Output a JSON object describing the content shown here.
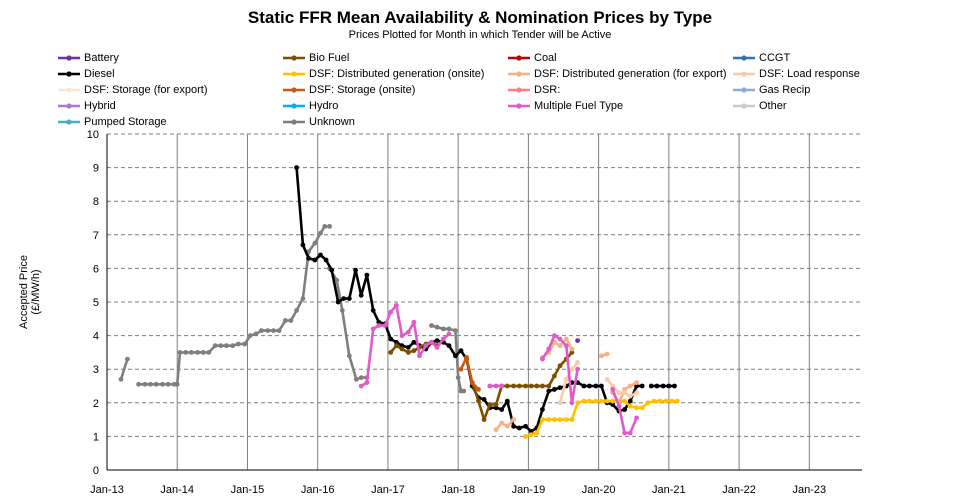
{
  "chart_data": {
    "type": "line",
    "title": "Static FFR Mean Availability & Nomination Prices by Type",
    "subtitle": "Prices Plotted for Month in which Tender will be Active",
    "ylabel": "Accepted Price (£/MW/h)",
    "xlabel": "",
    "ylim": [
      0,
      10
    ],
    "yticks": [
      "0",
      "1",
      "2",
      "3",
      "4",
      "5",
      "6",
      "7",
      "8",
      "9",
      "10"
    ],
    "xticks": [
      "Jan-13",
      "Jan-14",
      "Jan-15",
      "Jan-16",
      "Jan-17",
      "Jan-18",
      "Jan-19",
      "Jan-20",
      "Jan-21",
      "Jan-22",
      "Jan-23"
    ],
    "grid": "dashed horizontal, solid vertical",
    "legend_position": "top",
    "legend": [
      {
        "name": "Battery",
        "color": "#7030A0"
      },
      {
        "name": "Bio Fuel",
        "color": "#7F4F00"
      },
      {
        "name": "Coal",
        "color": "#C00000"
      },
      {
        "name": "CCGT",
        "color": "#2E75B6"
      },
      {
        "name": "Diesel",
        "color": "#000000"
      },
      {
        "name": "DSF: Distributed generation (onsite)",
        "color": "#FFC000"
      },
      {
        "name": "DSF: Distributed generation (for export)",
        "color": "#F4B183"
      },
      {
        "name": "DSF: Load response",
        "color": "#F8CBAD"
      },
      {
        "name": "DSF: Storage (for export)",
        "color": "#FBE5D6"
      },
      {
        "name": "DSF: Storage (onsite)",
        "color": "#C55A11"
      },
      {
        "name": "DSR:",
        "color": "#FF7C80"
      },
      {
        "name": "Gas Recip",
        "color": "#8FAADC"
      },
      {
        "name": "Hybrid",
        "color": "#B074D8"
      },
      {
        "name": "Hydro",
        "color": "#00B0F0"
      },
      {
        "name": "Multiple Fuel Type",
        "color": "#E05AC8"
      },
      {
        "name": "Other",
        "color": "#C9C9C9"
      },
      {
        "name": "Pumped Storage",
        "color": "#4BACC6"
      },
      {
        "name": "Unknown",
        "color": "#7F7F7F"
      }
    ],
    "series": [
      {
        "name": "Unknown",
        "color": "#7F7F7F",
        "x": [
          2013.2,
          2013.29,
          2013.45,
          2013.54,
          2013.62,
          2013.7,
          2013.79,
          2013.87,
          2013.96,
          2014.0,
          2014.04,
          2014.12,
          2014.2,
          2014.29,
          2014.37,
          2014.45,
          2014.54,
          2014.62,
          2014.7,
          2014.79,
          2014.87,
          2014.96,
          2015.04,
          2015.12,
          2015.2,
          2015.29,
          2015.37,
          2015.45,
          2015.54,
          2015.62,
          2015.7,
          2015.79,
          2015.87,
          2015.96,
          2016.04,
          2016.1,
          2016.17
        ],
        "y": [
          2.7,
          3.3,
          2.55,
          2.55,
          2.55,
          2.55,
          2.55,
          2.55,
          2.55,
          2.55,
          3.5,
          3.5,
          3.5,
          3.5,
          3.5,
          3.5,
          3.7,
          3.7,
          3.7,
          3.7,
          3.75,
          3.75,
          4.0,
          4.05,
          4.15,
          4.15,
          4.15,
          4.15,
          4.45,
          4.45,
          4.75,
          5.1,
          6.5,
          6.75,
          7.05,
          7.25,
          7.25
        ],
        "segments": [
          [
            0,
            2
          ],
          [
            2,
            37
          ]
        ]
      },
      {
        "name": "Unknown",
        "color": "#7F7F7F",
        "x": [
          2016.17,
          2016.27,
          2016.35,
          2016.45,
          2016.55,
          2016.62,
          2016.7
        ],
        "y": [
          6.0,
          5.65,
          4.75,
          3.4,
          2.7,
          2.75,
          2.75
        ]
      },
      {
        "name": "Unknown",
        "color": "#7F7F7F",
        "x": [
          2017.62,
          2017.7,
          2017.79,
          2017.87,
          2017.96,
          2018.0,
          2018.04,
          2018.08
        ],
        "y": [
          4.3,
          4.25,
          4.2,
          4.2,
          4.15,
          2.75,
          2.35,
          2.35
        ]
      },
      {
        "name": "Diesel",
        "color": "#000000",
        "x": [
          2015.7,
          2015.79,
          2015.87,
          2015.96,
          2016.04,
          2016.12,
          2016.2,
          2016.29,
          2016.37,
          2016.45,
          2016.54,
          2016.62,
          2016.7,
          2016.79,
          2016.87,
          2016.96,
          2017.04,
          2017.12,
          2017.2,
          2017.29,
          2017.37,
          2017.45,
          2017.54,
          2017.62,
          2017.7,
          2017.79,
          2017.87,
          2017.96,
          2018.04,
          2018.12,
          2018.2,
          2018.29,
          2018.37,
          2018.45,
          2018.54,
          2018.62,
          2018.7,
          2018.79,
          2018.87,
          2018.96,
          2019.04,
          2019.12,
          2019.2,
          2019.29,
          2019.37,
          2019.45,
          2019.54,
          2019.62,
          2019.7,
          2019.79,
          2019.87,
          2019.96,
          2020.04,
          2020.12,
          2020.2,
          2020.29,
          2020.37,
          2020.45,
          2020.54,
          2020.62
        ],
        "y": [
          9.0,
          6.7,
          6.3,
          6.25,
          6.4,
          6.25,
          5.95,
          5.0,
          5.1,
          5.1,
          5.95,
          5.2,
          5.8,
          4.75,
          4.4,
          4.35,
          3.9,
          3.8,
          3.7,
          3.65,
          3.8,
          3.7,
          3.6,
          3.8,
          3.85,
          3.8,
          3.7,
          3.4,
          3.55,
          3.3,
          2.5,
          2.15,
          2.1,
          1.85,
          1.85,
          1.8,
          2.05,
          1.3,
          1.25,
          1.3,
          1.15,
          1.25,
          1.8,
          2.35,
          2.4,
          2.45,
          2.5,
          2.6,
          2.6,
          2.5,
          2.5,
          2.5,
          2.5,
          2.0,
          1.95,
          1.75,
          1.8,
          2.05,
          2.5,
          2.5
        ]
      },
      {
        "name": "Diesel",
        "color": "#000000",
        "x": [
          2020.75,
          2020.83,
          2020.92,
          2021.0,
          2021.08
        ],
        "y": [
          2.5,
          2.5,
          2.5,
          2.5,
          2.5
        ]
      },
      {
        "name": "Bio Fuel",
        "color": "#7F4F00",
        "x": [
          2017.04,
          2017.12,
          2017.2,
          2017.29,
          2017.37,
          2017.45,
          2017.54,
          2017.62,
          2017.7,
          2018.12,
          2018.2,
          2018.29,
          2018.37,
          2018.45,
          2018.54,
          2018.62,
          2018.7,
          2018.79,
          2018.87,
          2018.96,
          2019.04,
          2019.12,
          2019.2,
          2019.29,
          2019.37,
          2019.45,
          2019.54,
          2019.62
        ],
        "y": [
          3.5,
          3.7,
          3.6,
          3.5,
          3.55,
          3.65,
          3.75,
          3.8,
          3.7,
          3.3,
          2.6,
          2.05,
          1.5,
          1.95,
          1.95,
          2.5,
          2.5,
          2.5,
          2.5,
          2.5,
          2.5,
          2.5,
          2.5,
          2.5,
          2.8,
          3.1,
          3.3,
          3.5
        ],
        "segments": [
          [
            0,
            9
          ],
          [
            9,
            28
          ]
        ]
      },
      {
        "name": "DSF: Distributed generation (onsite)",
        "color": "#FFC000",
        "x": [
          2018.96,
          2019.04,
          2019.12,
          2019.2,
          2019.29,
          2019.37,
          2019.45,
          2019.54,
          2019.62,
          2019.7,
          2019.79,
          2019.87,
          2019.96,
          2020.04,
          2020.12,
          2020.2,
          2020.29,
          2020.37,
          2020.45,
          2020.54,
          2020.62,
          2020.7,
          2020.79,
          2020.87,
          2020.96,
          2021.04,
          2021.12
        ],
        "y": [
          1.0,
          1.05,
          1.1,
          1.5,
          1.5,
          1.5,
          1.5,
          1.5,
          1.5,
          2.0,
          2.05,
          2.05,
          2.05,
          2.05,
          2.05,
          2.05,
          2.05,
          2.05,
          1.9,
          1.85,
          1.85,
          2.0,
          2.05,
          2.05,
          2.05,
          2.05,
          2.05
        ]
      },
      {
        "name": "DSF: Distributed generation (for export)",
        "color": "#F4B183",
        "x": [
          2018.54,
          2018.62,
          2018.7,
          2018.79,
          2019.2,
          2019.29,
          2019.37,
          2019.45,
          2019.54,
          2019.62,
          2020.04,
          2020.12,
          2020.2,
          2020.29,
          2020.37,
          2020.45,
          2020.54
        ],
        "y": [
          1.2,
          1.4,
          1.3,
          1.5,
          3.35,
          3.5,
          3.8,
          3.7,
          3.9,
          3.6,
          3.4,
          3.45,
          2.3,
          2.0,
          2.4,
          2.5,
          2.6
        ],
        "segments": [
          [
            0,
            4
          ],
          [
            4,
            10
          ],
          [
            10,
            12
          ],
          [
            12,
            17
          ]
        ]
      },
      {
        "name": "DSF: Load response",
        "color": "#F8CBAD",
        "x": [
          2019.45,
          2019.54,
          2019.62,
          2019.7,
          2020.12,
          2020.2,
          2020.29,
          2020.37,
          2020.45,
          2020.54
        ],
        "y": [
          2.0,
          2.7,
          3.0,
          3.2,
          2.7,
          2.5,
          2.3,
          2.3,
          2.2,
          2.3
        ],
        "segments": [
          [
            0,
            4
          ],
          [
            4,
            10
          ]
        ]
      },
      {
        "name": "DSF: Storage (onsite)",
        "color": "#C55A11",
        "x": [
          2018.04,
          2018.12,
          2018.2,
          2018.29
        ],
        "y": [
          3.0,
          3.35,
          2.6,
          2.4
        ]
      },
      {
        "name": "Battery",
        "color": "#7030A0",
        "x": [
          2019.7
        ],
        "y": [
          3.85
        ]
      },
      {
        "name": "Multiple Fuel Type",
        "color": "#E05AC8",
        "x": [
          2016.62,
          2016.7,
          2016.79,
          2016.87,
          2016.96,
          2017.04,
          2017.12,
          2017.2,
          2017.29,
          2017.37,
          2017.45,
          2017.54,
          2017.62,
          2017.7,
          2017.79,
          2017.87,
          2018.45,
          2018.54,
          2018.62,
          2019.2,
          2019.29,
          2019.37,
          2019.45,
          2019.54,
          2019.62,
          2019.7,
          2020.2,
          2020.29,
          2020.37,
          2020.45,
          2020.54
        ],
        "y": [
          2.5,
          2.6,
          4.2,
          4.3,
          4.3,
          4.7,
          4.9,
          4.0,
          4.1,
          4.4,
          3.4,
          3.7,
          3.8,
          3.65,
          3.9,
          4.05,
          2.5,
          2.5,
          2.5,
          3.3,
          3.6,
          4.0,
          3.9,
          3.7,
          2.0,
          3.0,
          2.4,
          1.9,
          1.1,
          1.1,
          1.55
        ],
        "segments": [
          [
            0,
            16
          ],
          [
            16,
            19
          ],
          [
            19,
            26
          ],
          [
            26,
            31
          ]
        ]
      }
    ]
  }
}
